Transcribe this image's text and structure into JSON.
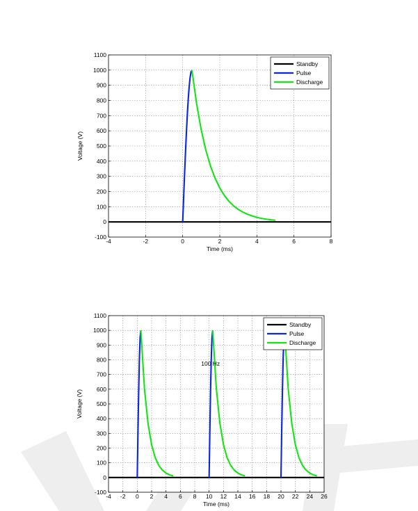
{
  "colors": {
    "standby": "#000000",
    "pulse": "#0b24e6",
    "discharge": "#12e612",
    "watermark": "#eeeeee"
  },
  "chart_data": [
    {
      "type": "line",
      "title": "",
      "xlabel": "Time (ms)",
      "ylabel": "Voltage (V)",
      "xlim": [
        -4,
        8
      ],
      "ylim": [
        -100,
        1100
      ],
      "xticks": [
        -4,
        -2,
        0,
        2,
        4,
        6,
        8
      ],
      "yticks": [
        -100,
        0,
        100,
        200,
        300,
        400,
        500,
        600,
        700,
        800,
        900,
        1000,
        1100
      ],
      "grid": true,
      "legend_position": "top-right",
      "annotation": "",
      "series": [
        {
          "name": "Standby",
          "color": "#000000",
          "x": [
            -4,
            0,
            4.9,
            8
          ],
          "y": [
            0,
            0,
            0,
            0
          ]
        },
        {
          "name": "Pulse",
          "color": "#0b24e6",
          "x": [
            0,
            0.05,
            0.1,
            0.15,
            0.2,
            0.25,
            0.3,
            0.35,
            0.4,
            0.45,
            0.5
          ],
          "y": [
            0,
            156,
            309,
            454,
            588,
            707,
            809,
            891,
            951,
            988,
            1000
          ]
        },
        {
          "name": "Discharge",
          "color": "#12e612",
          "x": [
            0.5,
            0.75,
            1.0,
            1.25,
            1.5,
            1.75,
            2.0,
            2.25,
            2.5,
            2.75,
            3.0,
            3.25,
            3.5,
            3.75,
            4.0,
            4.25,
            4.5,
            4.75,
            5.0
          ],
          "y": [
            1000,
            779,
            607,
            472,
            368,
            287,
            223,
            174,
            135,
            105,
            82,
            64,
            50,
            39,
            30,
            23,
            18,
            14,
            11
          ]
        }
      ]
    },
    {
      "type": "line",
      "title": "",
      "xlabel": "Time (ms)",
      "ylabel": "Voltage (V)",
      "xlim": [
        -4,
        26
      ],
      "ylim": [
        -100,
        1100
      ],
      "xticks": [
        -4,
        -2,
        0,
        2,
        4,
        6,
        8,
        10,
        12,
        14,
        16,
        18,
        20,
        22,
        24,
        26
      ],
      "yticks": [
        -100,
        0,
        100,
        200,
        300,
        400,
        500,
        600,
        700,
        800,
        900,
        1000,
        1100
      ],
      "grid": true,
      "legend_position": "top-right",
      "annotation": "100 Hz",
      "series": [
        {
          "name": "Standby",
          "color": "#000000",
          "x": [
            -4,
            0,
            5,
            10,
            15,
            20,
            25,
            26
          ],
          "y": [
            0,
            0,
            0,
            0,
            0,
            0,
            0,
            0
          ]
        },
        {
          "name": "Pulse",
          "color": "#0b24e6",
          "x": [
            0,
            0.1,
            0.2,
            0.3,
            0.4,
            0.5,
            null,
            10,
            10.1,
            10.2,
            10.3,
            10.4,
            10.5,
            null,
            20,
            20.1,
            20.2,
            20.3,
            20.4,
            20.5
          ],
          "y": [
            0,
            309,
            588,
            809,
            951,
            1000,
            null,
            0,
            309,
            588,
            809,
            951,
            1000,
            null,
            0,
            309,
            588,
            809,
            951,
            1000
          ]
        },
        {
          "name": "Discharge",
          "color": "#12e612",
          "x": [
            0.5,
            1.0,
            1.5,
            2.0,
            2.5,
            3.0,
            3.5,
            4.0,
            4.5,
            5.0,
            null,
            10.5,
            11.0,
            11.5,
            12.0,
            12.5,
            13.0,
            13.5,
            14.0,
            14.5,
            15.0,
            null,
            20.5,
            21.0,
            21.5,
            22.0,
            22.5,
            23.0,
            23.5,
            24.0,
            24.5,
            25.0
          ],
          "y": [
            1000,
            607,
            368,
            223,
            135,
            82,
            50,
            30,
            18,
            11,
            null,
            1000,
            607,
            368,
            223,
            135,
            82,
            50,
            30,
            18,
            11,
            null,
            1000,
            607,
            368,
            223,
            135,
            82,
            50,
            30,
            18,
            11
          ]
        }
      ]
    }
  ]
}
